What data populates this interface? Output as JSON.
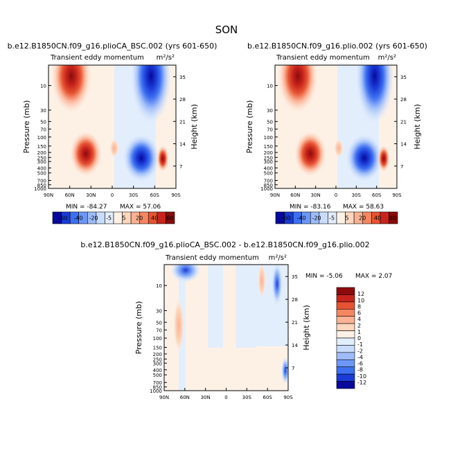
{
  "figure_title": "SON",
  "chart_data": [
    {
      "type": "heatmap",
      "title": "b.e12.B1850CN.f09_g16.plioCA_BSC.002 (yrs 601-650)",
      "subtitle_left": "Transient eddy momentum",
      "subtitle_right": "m²/s²",
      "ylabel": "Pressure (mb)",
      "ylabel_right": "Height (km)",
      "x_ticks": [
        "90N",
        "60N",
        "30N",
        "0",
        "30S",
        "60S",
        "90S"
      ],
      "y_ticks": [
        "10",
        "30",
        "50",
        "70",
        "100",
        "150",
        "200",
        "250",
        "300",
        "400",
        "500",
        "700",
        "850",
        "1000"
      ],
      "y2_ticks": [
        "35",
        "28",
        "21",
        "14",
        "7"
      ],
      "min_label": "MIN = -84.27",
      "max_label": "MAX = 57.06",
      "min": -84.27,
      "max": 57.06,
      "colorbar_labels": [
        "-60",
        "-40",
        "-20",
        "-5",
        "5",
        "20",
        "40",
        "60"
      ],
      "features": [
        {
          "lat": 57,
          "p": 10,
          "value": 40
        },
        {
          "lat": 40,
          "p": 230,
          "value": 57
        },
        {
          "lat": -32,
          "p": 250,
          "value": -84
        },
        {
          "lat": -55,
          "p": 10,
          "value": -60
        }
      ]
    },
    {
      "type": "heatmap",
      "title": "b.e12.B1850CN.f09_g16.plio.002 (yrs 601-650)",
      "subtitle_left": "Transient eddy momentum",
      "subtitle_right": "m²/s²",
      "ylabel": "Pressure (mb)",
      "ylabel_right": "Height (km)",
      "x_ticks": [
        "90N",
        "60N",
        "30N",
        "0",
        "30S",
        "60S",
        "90S"
      ],
      "y_ticks": [
        "10",
        "30",
        "50",
        "70",
        "100",
        "150",
        "200",
        "250",
        "300",
        "400",
        "500",
        "700",
        "850",
        "1000"
      ],
      "y2_ticks": [
        "35",
        "28",
        "21",
        "14",
        "7"
      ],
      "min_label": "MIN = -83.16",
      "max_label": "MAX = 58.63",
      "min": -83.16,
      "max": 58.63,
      "colorbar_labels": [
        "-60",
        "-40",
        "-20",
        "-5",
        "5",
        "20",
        "40",
        "60"
      ],
      "features": [
        {
          "lat": 57,
          "p": 10,
          "value": 40
        },
        {
          "lat": 40,
          "p": 230,
          "value": 58
        },
        {
          "lat": -32,
          "p": 250,
          "value": -83
        },
        {
          "lat": -55,
          "p": 10,
          "value": -60
        }
      ]
    },
    {
      "type": "heatmap",
      "title": "b.e12.B1850CN.f09_g16.plioCA_BSC.002 - b.e12.B1850CN.f09_g16.plio.002",
      "subtitle_left": "Transient eddy momentum",
      "subtitle_right": "m²/s²",
      "ylabel": "Pressure (mb)",
      "ylabel_right": "Height (km)",
      "x_ticks": [
        "90N",
        "60N",
        "30N",
        "0",
        "30S",
        "60S",
        "90S"
      ],
      "y_ticks": [
        "10",
        "30",
        "50",
        "70",
        "100",
        "150",
        "200",
        "250",
        "300",
        "400",
        "500",
        "700",
        "850",
        "1000"
      ],
      "y2_ticks": [
        "35",
        "28",
        "21",
        "14",
        "7"
      ],
      "min_label": "MIN = -5.06",
      "max_label": "MAX = 2.07",
      "min": -5.06,
      "max": 2.07,
      "colorbar_labels": [
        "12",
        "10",
        "8",
        "6",
        "4",
        "2",
        "1",
        "0",
        "-1",
        "-2",
        "-4",
        "-6",
        "-8",
        "-10",
        "-12"
      ],
      "features": [
        {
          "lat": -75,
          "p": 15,
          "value": -5
        },
        {
          "lat": -58,
          "p": 10,
          "value": 2
        },
        {
          "lat": 65,
          "p": 8,
          "value": -2
        },
        {
          "lat": 65,
          "p": 50,
          "value": 1
        }
      ]
    }
  ],
  "colors": {
    "cb1": [
      "#08089c",
      "#1a3bd6",
      "#3e6ff0",
      "#6b98f7",
      "#9dbcf9",
      "#c9dcfb",
      "#e3eefd",
      "#fdf1e6",
      "#fdd6bd",
      "#fbb193",
      "#f58662",
      "#e65332",
      "#c6241c",
      "#8b0b0b"
    ],
    "cb3": [
      "#8b0b0b",
      "#c6241c",
      "#e65332",
      "#f58662",
      "#fbb193",
      "#fdd6bd",
      "#fdf1e6",
      "#e3eefd",
      "#c9dcfb",
      "#9dbcf9",
      "#6b98f7",
      "#3e6ff0",
      "#1a3bd6",
      "#08089c"
    ]
  }
}
